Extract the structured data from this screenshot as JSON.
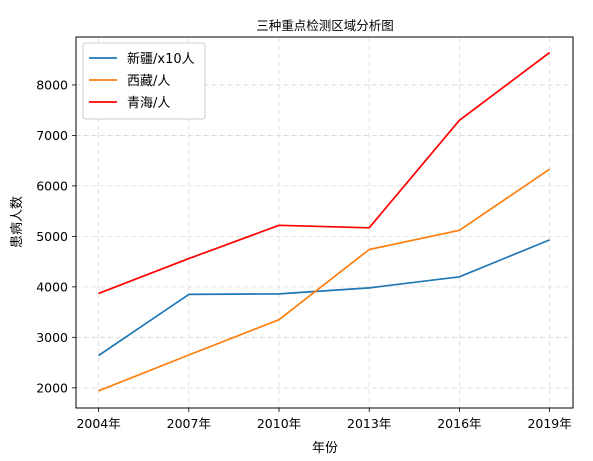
{
  "chart_data": {
    "type": "line",
    "title": "三种重点检测区域分析图",
    "xlabel": "年份",
    "ylabel": "患病人数",
    "categories": [
      "2004年",
      "2007年",
      "2010年",
      "2013年",
      "2016年",
      "2019年"
    ],
    "ylim": [
      1600,
      8950
    ],
    "yticks": [
      2000,
      3000,
      4000,
      5000,
      6000,
      7000,
      8000
    ],
    "grid": true,
    "legend_position": "top-left",
    "series": [
      {
        "name": "新疆/x10人",
        "color": "#1f77b4",
        "values": [
          2640,
          3850,
          3860,
          3980,
          4200,
          4930
        ]
      },
      {
        "name": "西藏/人",
        "color": "#ff7f0e",
        "values": [
          1940,
          2650,
          3350,
          4740,
          5120,
          6330
        ]
      },
      {
        "name": "青海/人",
        "color": "#ff0000",
        "values": [
          3870,
          4560,
          5220,
          5170,
          7300,
          8640
        ]
      }
    ]
  }
}
